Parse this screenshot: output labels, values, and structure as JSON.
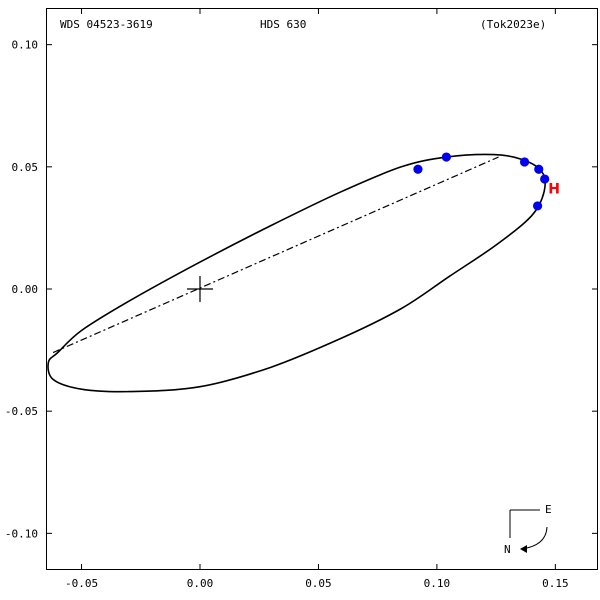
{
  "header": {
    "wds": "WDS 04523-3619",
    "discoverer": "HDS 630",
    "reference": "(Tok2023e)"
  },
  "compass": {
    "east_label": "E",
    "north_label": "N"
  },
  "chart_data": {
    "type": "scatter",
    "title": "",
    "xlabel": "",
    "ylabel": "",
    "xlim": [
      -0.065,
      0.168
    ],
    "ylim": [
      -0.115,
      0.115
    ],
    "x_tick_labels": [
      "-0.05",
      "0.00",
      "0.05",
      "0.10",
      "0.15"
    ],
    "x_tick_values": [
      -0.05,
      0.0,
      0.05,
      0.1,
      0.15
    ],
    "y_tick_labels": [
      "0.10",
      "0.05",
      "0.00",
      "-0.05",
      "-0.10"
    ],
    "y_tick_values": [
      0.1,
      0.05,
      0.0,
      -0.05,
      -0.1
    ],
    "grid": false,
    "primary": {
      "x": 0.0,
      "y": 0.0
    },
    "orbit_points": [
      [
        -0.06,
        -0.026
      ],
      [
        -0.064,
        -0.03
      ],
      [
        -0.062,
        -0.037
      ],
      [
        -0.05,
        -0.041
      ],
      [
        -0.03,
        -0.042
      ],
      [
        0.0,
        -0.04
      ],
      [
        0.03,
        -0.032
      ],
      [
        0.06,
        -0.02
      ],
      [
        0.085,
        -0.008
      ],
      [
        0.105,
        0.005
      ],
      [
        0.125,
        0.018
      ],
      [
        0.14,
        0.03
      ],
      [
        0.1453,
        0.04
      ],
      [
        0.1443,
        0.048
      ],
      [
        0.136,
        0.053
      ],
      [
        0.124,
        0.055
      ],
      [
        0.104,
        0.054
      ],
      [
        0.085,
        0.05
      ],
      [
        0.06,
        0.04
      ],
      [
        0.03,
        0.026
      ],
      [
        0.0,
        0.011
      ],
      [
        -0.03,
        -0.005
      ],
      [
        -0.05,
        -0.017
      ],
      [
        -0.06,
        -0.026
      ]
    ],
    "line_of_nodes": [
      [
        -0.062,
        -0.026
      ],
      [
        0.126,
        0.054
      ]
    ],
    "observations": [
      {
        "x": 0.092,
        "y": 0.049
      },
      {
        "x": 0.104,
        "y": 0.054
      },
      {
        "x": 0.137,
        "y": 0.052
      },
      {
        "x": 0.143,
        "y": 0.049
      },
      {
        "x": 0.1455,
        "y": 0.045
      },
      {
        "x": 0.1425,
        "y": 0.034
      }
    ],
    "annotations": [
      {
        "text": "H",
        "x": 0.147,
        "y": 0.039,
        "color": "#ff0000"
      }
    ]
  }
}
